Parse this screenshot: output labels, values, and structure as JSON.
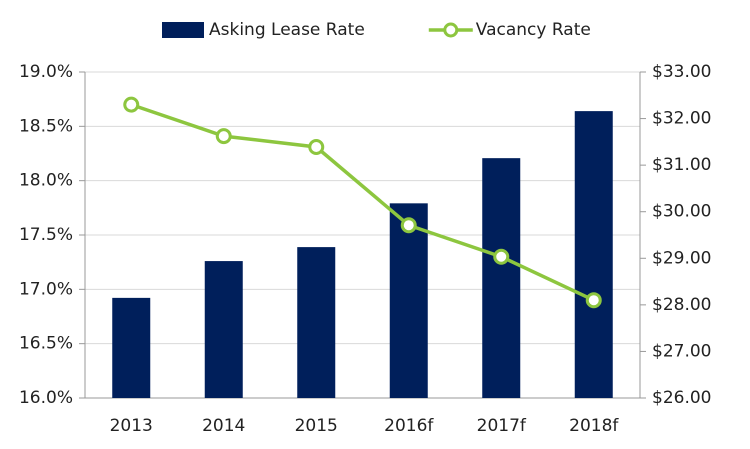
{
  "chart_data": {
    "type": "bar",
    "categories": [
      "2013",
      "2014",
      "2015",
      "2016f",
      "2017f",
      "2018f"
    ],
    "series": [
      {
        "name": "Asking Lease Rate",
        "type": "bar",
        "axis": "y2",
        "color": "#001f5b",
        "values": [
          28.15,
          28.94,
          29.24,
          30.18,
          31.15,
          32.16
        ]
      },
      {
        "name": "Vacancy Rate",
        "type": "line",
        "axis": "y",
        "color": "#8dc63f",
        "values": [
          18.7,
          18.41,
          18.31,
          17.59,
          17.3,
          16.9
        ]
      }
    ],
    "ylim": [
      16,
      19
    ],
    "yticks": [
      {
        "value": 16,
        "label": "16.0%"
      },
      {
        "value": 16.5,
        "label": "16.5%"
      },
      {
        "value": 17,
        "label": "17.0%"
      },
      {
        "value": 17.5,
        "label": "17.5%"
      },
      {
        "value": 18,
        "label": "18.0%"
      },
      {
        "value": 18.5,
        "label": "18.5%"
      },
      {
        "value": 19,
        "label": "19.0%"
      }
    ],
    "y2lim": [
      26,
      33
    ],
    "y2ticks": [
      {
        "value": 26,
        "label": "$26.00"
      },
      {
        "value": 27,
        "label": "$27.00"
      },
      {
        "value": 28,
        "label": "$28.00"
      },
      {
        "value": 29,
        "label": "$29.00"
      },
      {
        "value": 30,
        "label": "$30.00"
      },
      {
        "value": 31,
        "label": "$31.00"
      },
      {
        "value": 32,
        "label": "$32.00"
      },
      {
        "value": 33,
        "label": "$33.00"
      }
    ],
    "grid": true,
    "legend": "top"
  }
}
